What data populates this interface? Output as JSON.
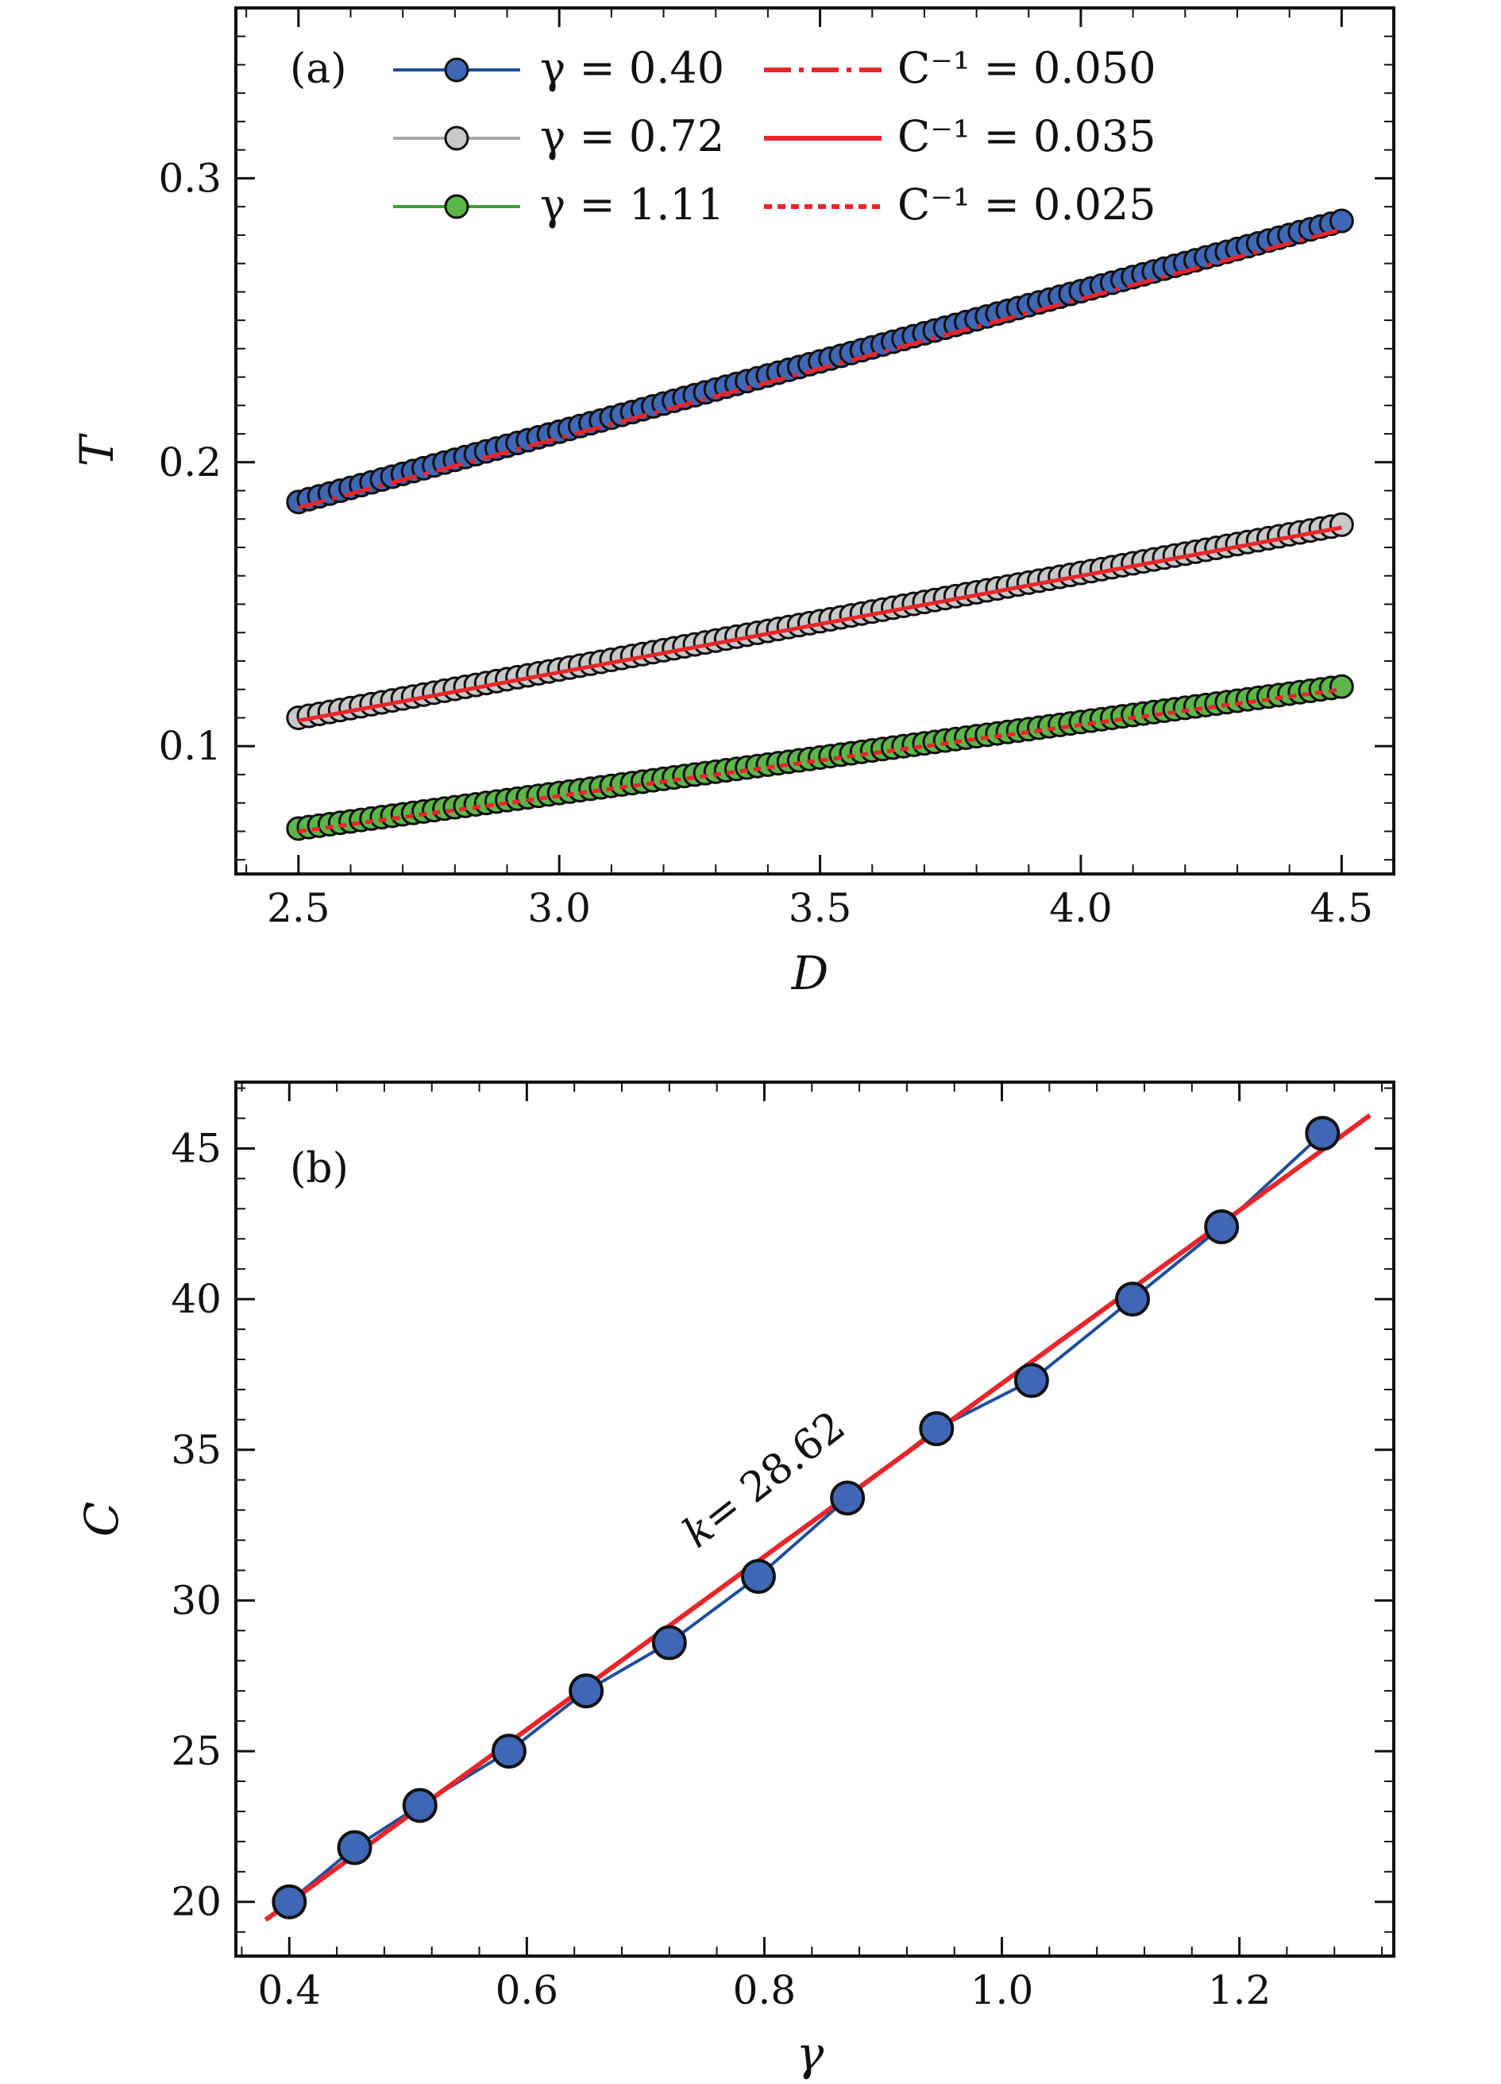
{
  "chart_data": [
    {
      "type": "line",
      "panel_label": "(a)",
      "xlabel": "D",
      "ylabel": "T",
      "xlim": [
        2.38,
        4.6
      ],
      "ylim": [
        0.055,
        0.36
      ],
      "xticks": [
        2.5,
        3.0,
        3.5,
        4.0,
        4.5
      ],
      "xtick_labels": [
        "2.5",
        "3.0",
        "3.5",
        "4.0",
        "4.5"
      ],
      "yticks": [
        0.1,
        0.2,
        0.3
      ],
      "ytick_labels": [
        "0.1",
        "0.2",
        "0.3"
      ],
      "legend_position": "top",
      "series": [
        {
          "name": "γ = 0.40",
          "kind": "data",
          "color": "#1f4e9c",
          "marker_fill": "#3f67b5",
          "x_range": [
            2.5,
            4.5
          ],
          "n_points": 101,
          "y_start": 0.186,
          "y_end": 0.285
        },
        {
          "name": "γ = 0.72",
          "kind": "data",
          "color": "#a9a9a9",
          "marker_fill": "#c8c8c8",
          "x_range": [
            2.5,
            4.5
          ],
          "n_points": 101,
          "y_start": 0.11,
          "y_end": 0.178
        },
        {
          "name": "γ = 1.11",
          "kind": "data",
          "color": "#3aa335",
          "marker_fill": "#5cb64a",
          "x_range": [
            2.5,
            4.5
          ],
          "n_points": 101,
          "y_start": 0.071,
          "y_end": 0.121
        },
        {
          "name": "C⁻¹ = 0.050",
          "kind": "fit",
          "color": "#e8262b",
          "dash": "dashdot",
          "x_range": [
            2.5,
            4.5
          ],
          "y_start": 0.184,
          "y_end": 0.282
        },
        {
          "name": "C⁻¹ = 0.035",
          "kind": "fit",
          "color": "#e8262b",
          "dash": "solid",
          "x_range": [
            2.5,
            4.5
          ],
          "y_start": 0.109,
          "y_end": 0.177
        },
        {
          "name": "C⁻¹ = 0.025",
          "kind": "fit",
          "color": "#e8262b",
          "dash": "dotted",
          "x_range": [
            2.5,
            4.5
          ],
          "y_start": 0.07,
          "y_end": 0.12
        }
      ]
    },
    {
      "type": "scatter",
      "panel_label": "(b)",
      "xlabel": "γ",
      "ylabel": "C",
      "xlim": [
        0.355,
        1.33
      ],
      "ylim": [
        18.2,
        47.2
      ],
      "xticks": [
        0.4,
        0.6,
        0.8,
        1.0,
        1.2
      ],
      "xtick_labels": [
        "0.4",
        "0.6",
        "0.8",
        "1.0",
        "1.2"
      ],
      "yticks": [
        20,
        25,
        30,
        35,
        40,
        45
      ],
      "ytick_labels": [
        "20",
        "25",
        "30",
        "35",
        "40",
        "45"
      ],
      "series": [
        {
          "kind": "data",
          "color": "#1f4e9c",
          "marker_fill": "#3f67b5",
          "x": [
            0.4,
            0.455,
            0.51,
            0.585,
            0.65,
            0.72,
            0.795,
            0.87,
            0.945,
            1.025,
            1.11,
            1.185,
            1.27
          ],
          "y": [
            20.0,
            21.8,
            23.2,
            25.0,
            27.0,
            28.6,
            30.8,
            33.4,
            35.7,
            37.3,
            40.0,
            42.4,
            45.5
          ]
        },
        {
          "kind": "fit",
          "color": "#e8262b",
          "x": [
            0.38,
            1.31
          ],
          "y": [
            19.4,
            46.1
          ]
        }
      ],
      "annotation": {
        "prefix": "k",
        "text": "= 28.62"
      }
    }
  ]
}
